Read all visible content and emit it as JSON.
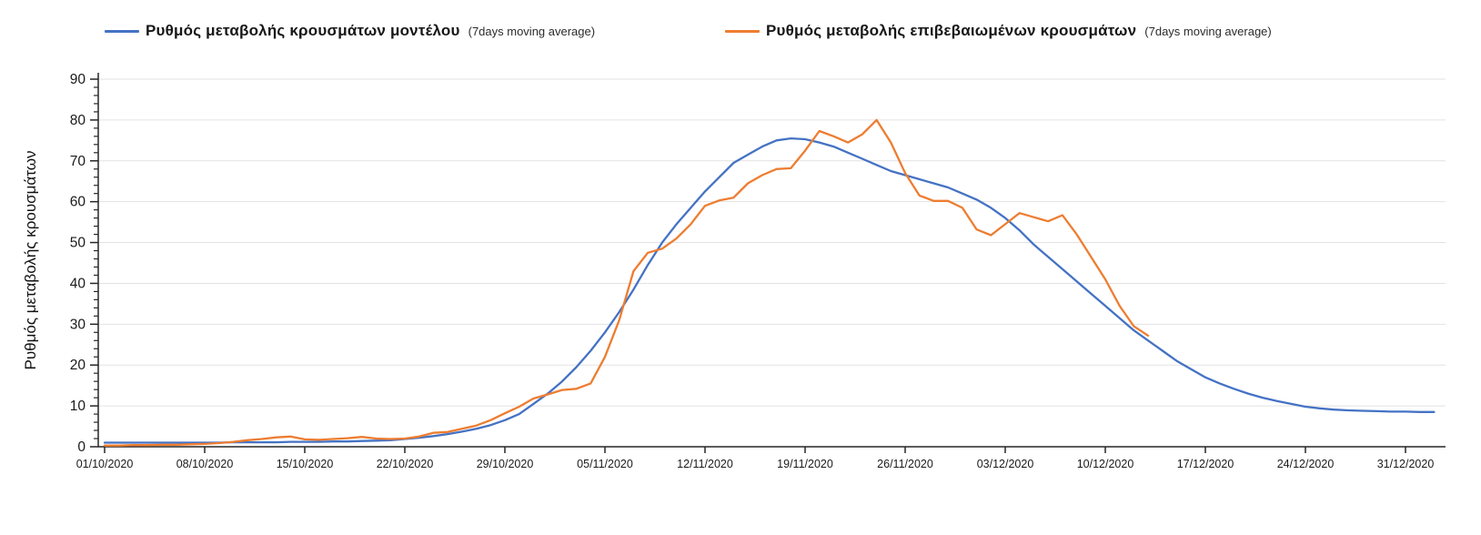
{
  "legend": [
    {
      "label": "Ρυθμός μεταβολής κρουσμάτων μοντέλου",
      "suffix": "(7days moving average)",
      "color": "#4472C4"
    },
    {
      "label": "Ρυθμός μεταβολής επιβεβαιωμένων κρουσμάτων",
      "suffix": "(7days moving average)",
      "color": "#ED7D31"
    }
  ],
  "y_axis": {
    "title": "Ρυθμός μεταβολής κρουσμάτων",
    "tick_labels": [
      "0",
      "10",
      "20",
      "30",
      "40",
      "50",
      "60",
      "70",
      "80",
      "90"
    ],
    "min": 0,
    "max": 90,
    "major_step": 10,
    "minor_step": 2
  },
  "x_axis": {
    "tick_labels": [
      "01/10/2020",
      "08/10/2020",
      "15/10/2020",
      "22/10/2020",
      "29/10/2020",
      "05/11/2020",
      "12/11/2020",
      "19/11/2020",
      "26/11/2020",
      "03/12/2020",
      "10/12/2020",
      "17/12/2020",
      "24/12/2020",
      "31/12/2020"
    ],
    "days_per_tick": 7
  },
  "chart_data": {
    "type": "line",
    "title": "",
    "xlabel": "",
    "ylabel": "Ρυθμός μεταβολής κρουσμάτων",
    "ylim": [
      0,
      90
    ],
    "grid": true,
    "legend_position": "top",
    "x_unit": "days since 01/10/2020 (daily points, weekly tick labels)",
    "series": [
      {
        "name": "Ρυθμός μεταβολής κρουσμάτων μοντέλου (7days moving average)",
        "color": "#4472C4",
        "start_day": 0,
        "values": [
          1.0,
          1.0,
          1.0,
          1.0,
          1.0,
          1.0,
          1.0,
          1.0,
          1.0,
          1.1,
          1.1,
          1.1,
          1.1,
          1.2,
          1.2,
          1.2,
          1.3,
          1.3,
          1.4,
          1.5,
          1.6,
          1.9,
          2.2,
          2.6,
          3.1,
          3.7,
          4.4,
          5.3,
          6.5,
          8.0,
          10.5,
          13.0,
          16.0,
          19.5,
          23.5,
          28.0,
          33.0,
          38.5,
          44.5,
          50.0,
          54.5,
          58.5,
          62.5,
          66.0,
          69.5,
          71.5,
          73.5,
          75.0,
          75.5,
          75.3,
          74.5,
          73.5,
          72.0,
          70.5,
          69.0,
          67.5,
          66.5,
          65.5,
          64.5,
          63.5,
          62.0,
          60.5,
          58.5,
          56.0,
          53.0,
          49.5,
          46.5,
          43.5,
          40.5,
          37.5,
          34.5,
          31.5,
          28.5,
          26.0,
          23.5,
          21.0,
          19.0,
          17.0,
          15.5,
          14.2,
          13.0,
          12.0,
          11.2,
          10.5,
          9.8,
          9.4,
          9.1,
          8.9,
          8.8,
          8.7,
          8.6,
          8.6,
          8.5,
          8.5
        ]
      },
      {
        "name": "Ρυθμός μεταβολής επιβεβαιωμένων κρουσμάτων (7days moving average)",
        "color": "#ED7D31",
        "start_day": 0,
        "values": [
          0.3,
          0.3,
          0.4,
          0.4,
          0.5,
          0.5,
          0.6,
          0.7,
          0.9,
          1.2,
          1.6,
          1.9,
          2.3,
          2.5,
          1.8,
          1.7,
          1.9,
          2.1,
          2.4,
          2.0,
          1.9,
          2.0,
          2.5,
          3.4,
          3.6,
          4.4,
          5.2,
          6.5,
          8.2,
          9.8,
          11.8,
          12.8,
          13.9,
          14.2,
          15.5,
          22.0,
          31.0,
          43.0,
          47.5,
          48.5,
          51.0,
          54.5,
          59.0,
          60.3,
          61.0,
          64.5,
          66.5,
          68.0,
          68.2,
          72.5,
          77.3,
          76.0,
          74.5,
          76.5,
          80.0,
          74.5,
          67.0,
          61.5,
          60.2,
          60.2,
          58.5,
          53.2,
          51.8,
          54.5,
          57.2,
          56.2,
          55.2,
          56.7,
          52.0,
          46.5,
          41.0,
          34.5,
          29.5,
          27.2
        ]
      }
    ]
  },
  "style": {
    "grid_color": "#e2e2e2",
    "axis_color": "#262626",
    "tick_label_color": "#1a1a1a"
  }
}
